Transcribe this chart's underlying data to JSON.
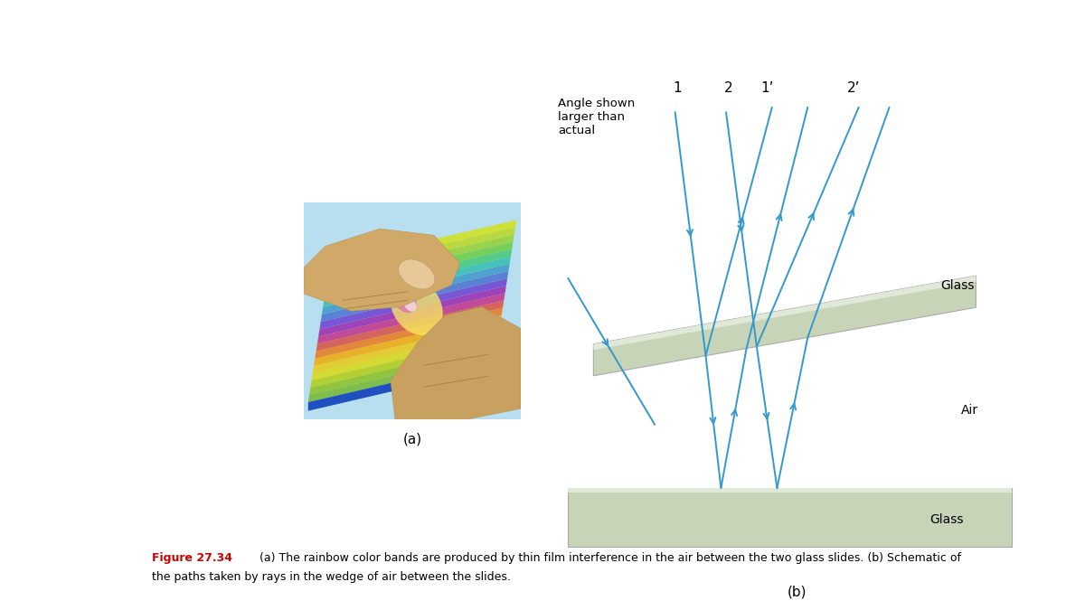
{
  "fig_width": 12.0,
  "fig_height": 6.75,
  "bg_color": "#ffffff",
  "caption_bold": "Figure 27.34",
  "caption_bold_color": "#cc0000",
  "caption_normal": " (a) The rainbow color bands are produced by thin film interference in the air between the two glass slides. (b) Schematic of",
  "caption_line2": "the paths taken by rays in the wedge of air between the slides.",
  "caption_fontsize": 9.0,
  "label_a": "(a)",
  "label_b": "(b)",
  "annotation_angle": "Angle shown\nlarger than\nactual",
  "ray_color": "#3399cc",
  "glass_fill": "#c8d4b8",
  "glass_edge": "#aaaaaa",
  "glass_label": "Glass",
  "air_label": "Air",
  "label_1": "1",
  "label_2": "2",
  "label_1p": "1’",
  "label_2p": "2’"
}
